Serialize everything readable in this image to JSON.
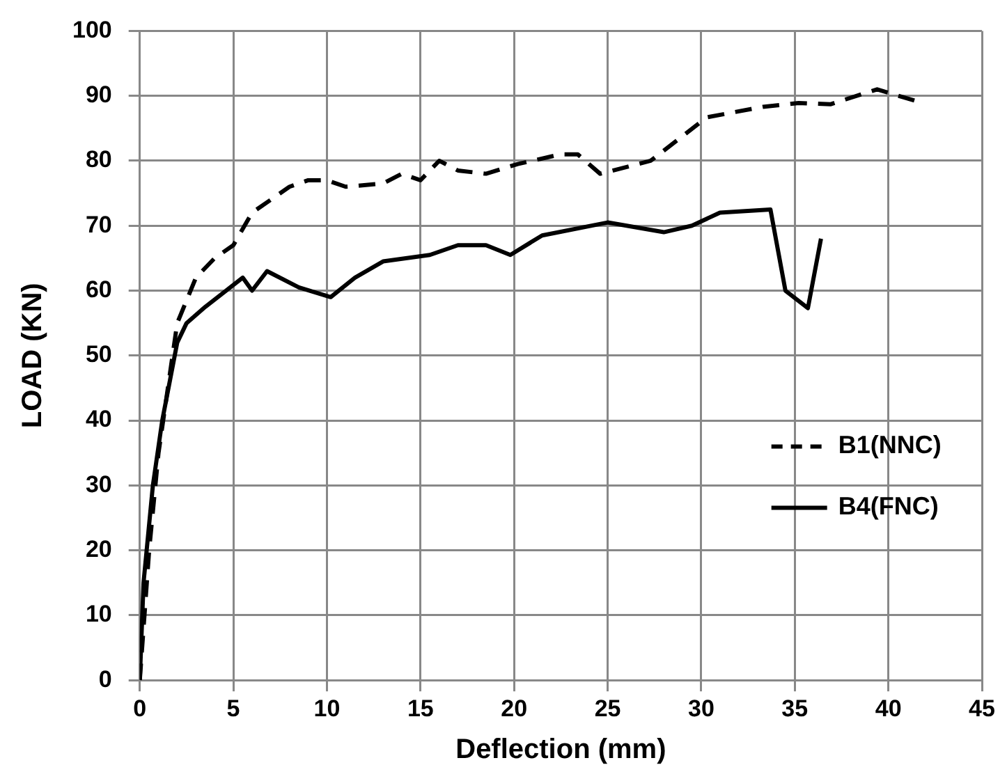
{
  "chart_data": {
    "type": "line",
    "xlabel": "Deflection (mm)",
    "ylabel": "LOAD (KN)",
    "xlim": [
      0,
      45
    ],
    "xticks": [
      0,
      5,
      10,
      15,
      20,
      25,
      30,
      35,
      40,
      45
    ],
    "ylim": [
      0,
      100
    ],
    "yticks": [
      0,
      10,
      20,
      30,
      40,
      50,
      60,
      70,
      80,
      90,
      100
    ],
    "grid": true,
    "legend": "right",
    "marker": "none",
    "series": [
      {
        "name": "B1(NNC)",
        "color": "#000000",
        "line_style": "dashed",
        "x": [
          0,
          0.5,
          1,
          1.5,
          2,
          3,
          4,
          5,
          6,
          8,
          9,
          10,
          11,
          13,
          14,
          15,
          16,
          17,
          18.5,
          20.2,
          22.5,
          23.4,
          24.6,
          27.3,
          30.3,
          33.3,
          35.2,
          36.9,
          39.4,
          41.7
        ],
        "values": [
          0,
          20,
          35,
          45,
          55,
          62,
          65,
          67,
          72,
          76,
          77,
          77,
          76,
          76.5,
          78,
          77,
          80,
          78.5,
          78,
          79.5,
          81,
          81,
          78,
          80,
          86.7,
          88.3,
          88.9,
          88.7,
          91,
          89
        ]
      },
      {
        "name": "B4(FNC)",
        "color": "#000000",
        "line_style": "solid",
        "x": [
          0,
          0.2,
          0.7,
          1.2,
          2,
          2.5,
          3.5,
          5.5,
          6,
          6.8,
          8.5,
          10.2,
          11.5,
          13,
          15.5,
          17,
          18.5,
          19.8,
          21.5,
          25,
          28,
          29.5,
          31,
          33.7,
          34.5,
          35.7,
          36.4
        ],
        "values": [
          0,
          15,
          30,
          40,
          52,
          55,
          57.5,
          62,
          60,
          63,
          60.5,
          59,
          62,
          64.5,
          65.5,
          67,
          67,
          65.5,
          68.5,
          70.5,
          69,
          70,
          72,
          72.5,
          60,
          57.3,
          68
        ]
      }
    ]
  }
}
